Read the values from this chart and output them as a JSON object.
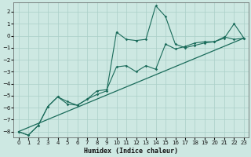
{
  "xlabel": "Humidex (Indice chaleur)",
  "xlim": [
    -0.5,
    23.5
  ],
  "ylim": [
    -8.5,
    2.8
  ],
  "xticks": [
    0,
    1,
    2,
    3,
    4,
    5,
    6,
    7,
    8,
    9,
    10,
    11,
    12,
    13,
    14,
    15,
    16,
    17,
    18,
    19,
    20,
    21,
    22,
    23
  ],
  "yticks": [
    -8,
    -7,
    -6,
    -5,
    -4,
    -3,
    -2,
    -1,
    0,
    1,
    2
  ],
  "bg_color": "#cde8e2",
  "grid_color": "#aacfc8",
  "line_color": "#1a6b5a",
  "line1_x": [
    0,
    1,
    2,
    3,
    4,
    5,
    6,
    7,
    8,
    9,
    10,
    11,
    12,
    13,
    14,
    15,
    16,
    17,
    18,
    19,
    20,
    21,
    22,
    23
  ],
  "line1_y": [
    -8.0,
    -8.3,
    -7.5,
    -5.9,
    -5.1,
    -5.7,
    -5.8,
    -5.3,
    -4.6,
    -4.5,
    -2.6,
    -2.5,
    -3.0,
    -2.5,
    -2.8,
    -0.7,
    -1.1,
    -0.9,
    -0.6,
    -0.5,
    -0.5,
    -0.1,
    -0.3,
    -0.2
  ],
  "line2_x": [
    0,
    1,
    2,
    3,
    4,
    5,
    6,
    7,
    8,
    9,
    10,
    11,
    12,
    13,
    14,
    15,
    16,
    17,
    18,
    19,
    20,
    21,
    22,
    23
  ],
  "line2_y": [
    -8.0,
    -8.3,
    -7.5,
    -5.9,
    -5.1,
    -5.5,
    -5.8,
    -5.3,
    -4.9,
    -4.6,
    0.3,
    -0.3,
    -0.4,
    -0.3,
    2.5,
    1.6,
    -0.7,
    -1.0,
    -0.8,
    -0.6,
    -0.5,
    -0.2,
    1.0,
    -0.2
  ],
  "line3_x": [
    0,
    23
  ],
  "line3_y": [
    -8.0,
    -0.2
  ]
}
